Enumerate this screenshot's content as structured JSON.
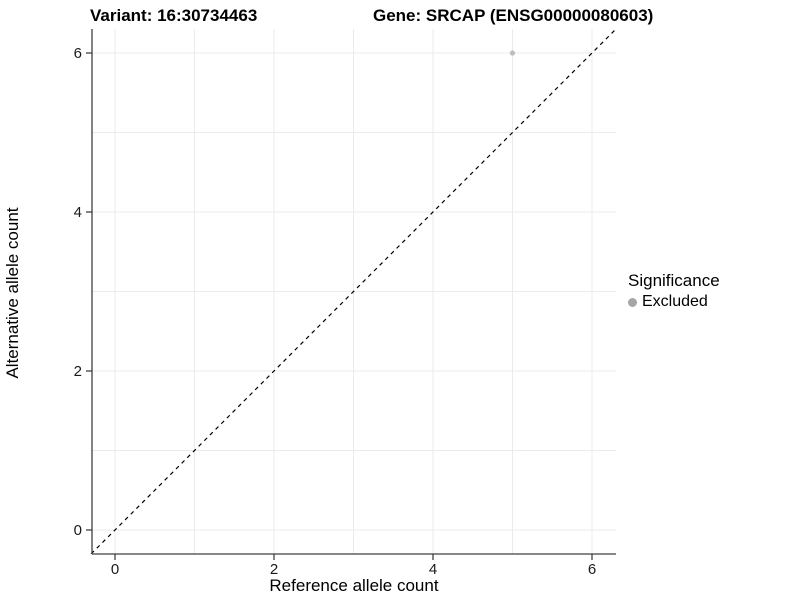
{
  "chart_data": {
    "type": "scatter",
    "title_variant": "Variant: 16:30734463",
    "title_gene": "Gene: SRCAP (ENSG00000080603)",
    "xlabel": "Reference allele count",
    "ylabel": "Alternative allele count",
    "xticks": [
      0,
      2,
      4,
      6
    ],
    "yticks": [
      0,
      2,
      4,
      6
    ],
    "xlim": [
      -0.3,
      6.3
    ],
    "ylim": [
      -0.3,
      6.3
    ],
    "grid_interval": 1,
    "grid_min": 0,
    "grid_max": 6,
    "grid_on": true,
    "points": [
      {
        "x": 5,
        "y": 6,
        "significance": "Excluded"
      }
    ],
    "reference_line": {
      "kind": "identity",
      "slope": 1,
      "intercept": 0,
      "style": "dashed",
      "color": "#000000"
    },
    "legend": {
      "title": "Significance",
      "position": "right",
      "entries": [
        {
          "label": "Excluded",
          "color": "#a6a6a6"
        }
      ]
    },
    "colors": {
      "background": "#ffffff",
      "grid": "#ebebeb",
      "axis_line": "#404040",
      "tick_mark": "#333333",
      "tick_label": "#1a1a1a",
      "point": "#bebebe",
      "dashed_line": "#000000",
      "text": "#000000"
    }
  }
}
